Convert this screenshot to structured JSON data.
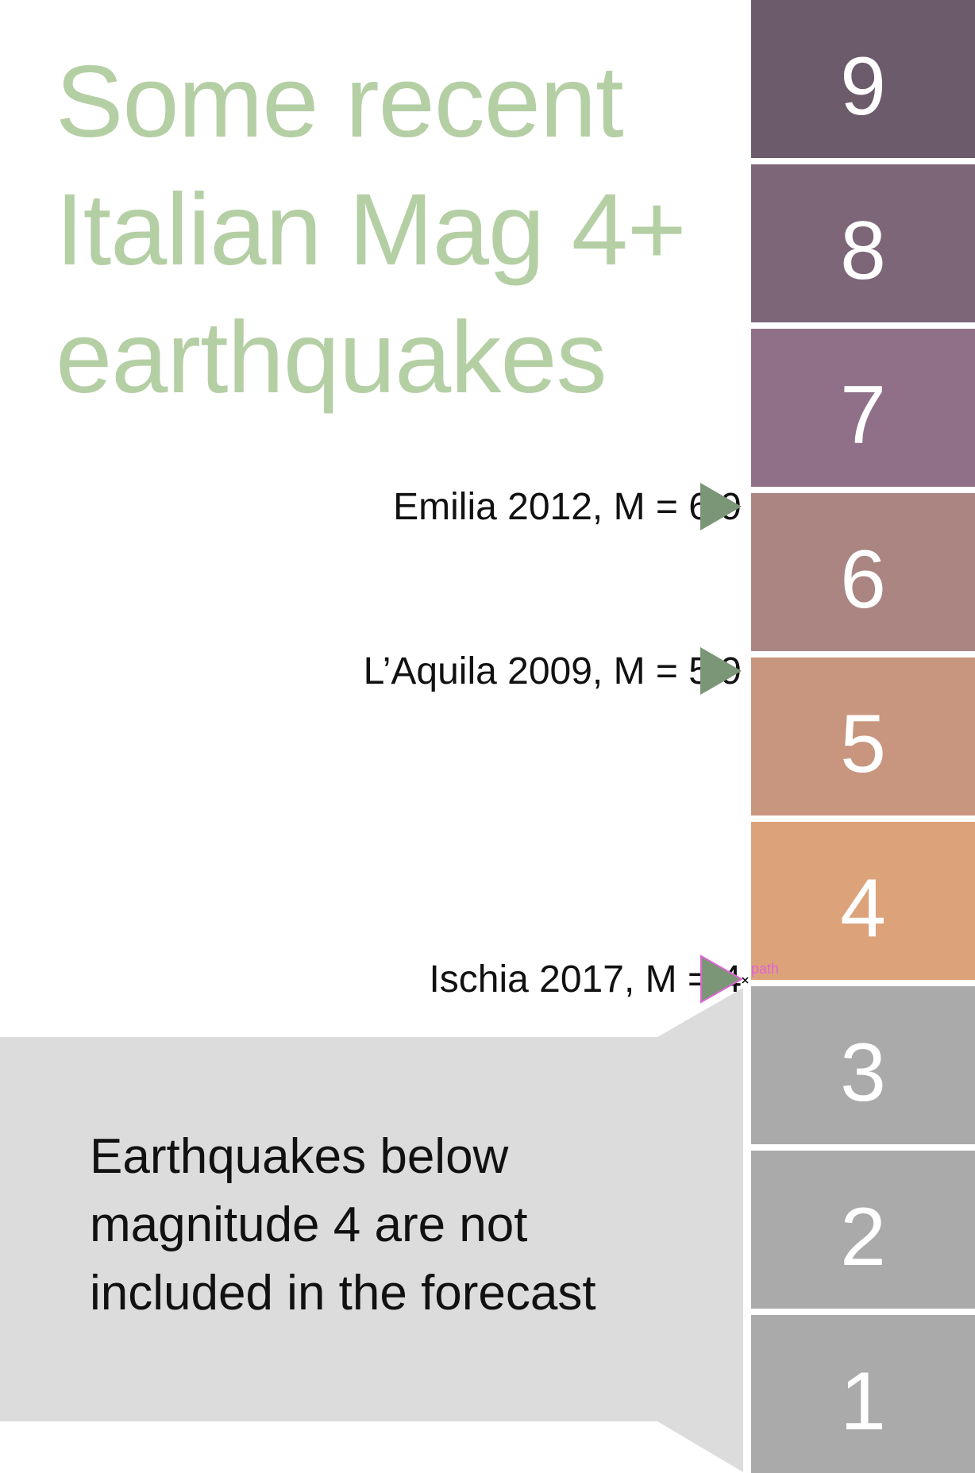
{
  "title": {
    "line1": "Some recent",
    "line2": "Italian Mag 4+",
    "line3": "earthquakes"
  },
  "scale": {
    "levels": [
      {
        "label": "9",
        "color": "#6b5b6b"
      },
      {
        "label": "8",
        "color": "#7d6678"
      },
      {
        "label": "7",
        "color": "#8f7088"
      },
      {
        "label": "6",
        "color": "#aa8582"
      },
      {
        "label": "5",
        "color": "#c8967e"
      },
      {
        "label": "4",
        "color": "#dca37b"
      },
      {
        "label": "3",
        "color": "#aaaaaa"
      },
      {
        "label": "2",
        "color": "#aaaaaa"
      },
      {
        "label": "1",
        "color": "#aaaaaa"
      }
    ]
  },
  "events": [
    {
      "label": "Emilia 2012, M = 6.9",
      "magnitude": 6.9
    },
    {
      "label": "L’Aquila 2009, M = 5.9",
      "magnitude": 5.9
    },
    {
      "label": "Ischia 2017, M = 4",
      "magnitude": 4
    }
  ],
  "selection_tag": "path",
  "callout": {
    "line1": "Earthquakes below",
    "line2": "magnitude 4 are not",
    "line3": "included in the forecast",
    "color": "#dcdcdc"
  },
  "marker_color": "#7b9677"
}
